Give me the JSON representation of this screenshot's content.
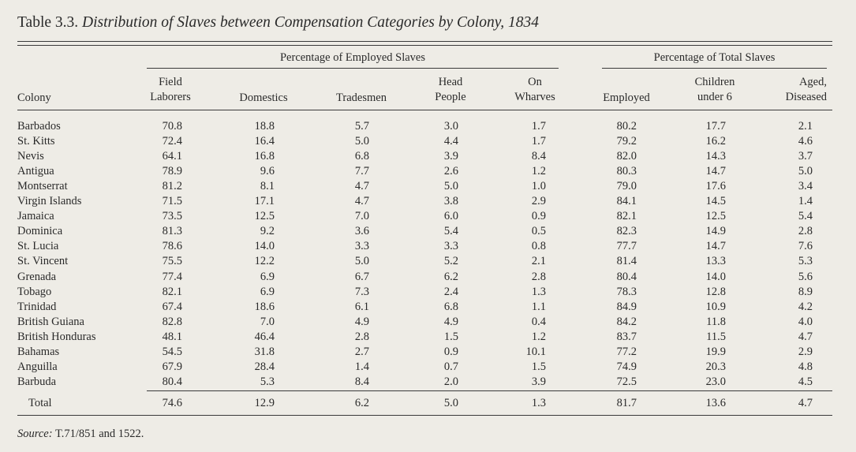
{
  "title": {
    "prefix": "Table 3.3.",
    "text": "Distribution of Slaves between Compensation Categories by Colony, 1834"
  },
  "groups": {
    "employed": "Percentage of Employed Slaves",
    "total": "Percentage of Total Slaves"
  },
  "columns": {
    "colony": "Colony",
    "field_1": "Field",
    "field_2": "Laborers",
    "domestics": "Domestics",
    "tradesmen": "Tradesmen",
    "head_1": "Head",
    "head_2": "People",
    "wharves_1": "On",
    "wharves_2": "Wharves",
    "employed": "Employed",
    "children_1": "Children",
    "children_2": "under 6",
    "aged_1": "Aged,",
    "aged_2": "Diseased"
  },
  "rows": [
    {
      "colony": "Barbados",
      "v": [
        "70.8",
        "18.8",
        "5.7",
        "3.0",
        "1.7",
        "80.2",
        "17.7",
        "2.1"
      ]
    },
    {
      "colony": "St. Kitts",
      "v": [
        "72.4",
        "16.4",
        "5.0",
        "4.4",
        "1.7",
        "79.2",
        "16.2",
        "4.6"
      ]
    },
    {
      "colony": "Nevis",
      "v": [
        "64.1",
        "16.8",
        "6.8",
        "3.9",
        "8.4",
        "82.0",
        "14.3",
        "3.7"
      ]
    },
    {
      "colony": "Antigua",
      "v": [
        "78.9",
        "9.6",
        "7.7",
        "2.6",
        "1.2",
        "80.3",
        "14.7",
        "5.0"
      ]
    },
    {
      "colony": "Montserrat",
      "v": [
        "81.2",
        "8.1",
        "4.7",
        "5.0",
        "1.0",
        "79.0",
        "17.6",
        "3.4"
      ]
    },
    {
      "colony": "Virgin Islands",
      "v": [
        "71.5",
        "17.1",
        "4.7",
        "3.8",
        "2.9",
        "84.1",
        "14.5",
        "1.4"
      ]
    },
    {
      "colony": "Jamaica",
      "v": [
        "73.5",
        "12.5",
        "7.0",
        "6.0",
        "0.9",
        "82.1",
        "12.5",
        "5.4"
      ]
    },
    {
      "colony": "Dominica",
      "v": [
        "81.3",
        "9.2",
        "3.6",
        "5.4",
        "0.5",
        "82.3",
        "14.9",
        "2.8"
      ]
    },
    {
      "colony": "St. Lucia",
      "v": [
        "78.6",
        "14.0",
        "3.3",
        "3.3",
        "0.8",
        "77.7",
        "14.7",
        "7.6"
      ]
    },
    {
      "colony": "St. Vincent",
      "v": [
        "75.5",
        "12.2",
        "5.0",
        "5.2",
        "2.1",
        "81.4",
        "13.3",
        "5.3"
      ]
    },
    {
      "colony": "Grenada",
      "v": [
        "77.4",
        "6.9",
        "6.7",
        "6.2",
        "2.8",
        "80.4",
        "14.0",
        "5.6"
      ]
    },
    {
      "colony": "Tobago",
      "v": [
        "82.1",
        "6.9",
        "7.3",
        "2.4",
        "1.3",
        "78.3",
        "12.8",
        "8.9"
      ]
    },
    {
      "colony": "Trinidad",
      "v": [
        "67.4",
        "18.6",
        "6.1",
        "6.8",
        "1.1",
        "84.9",
        "10.9",
        "4.2"
      ]
    },
    {
      "colony": "British Guiana",
      "v": [
        "82.8",
        "7.0",
        "4.9",
        "4.9",
        "0.4",
        "84.2",
        "11.8",
        "4.0"
      ]
    },
    {
      "colony": "British Honduras",
      "v": [
        "48.1",
        "46.4",
        "2.8",
        "1.5",
        "1.2",
        "83.7",
        "11.5",
        "4.7"
      ]
    },
    {
      "colony": "Bahamas",
      "v": [
        "54.5",
        "31.8",
        "2.7",
        "0.9",
        "10.1",
        "77.2",
        "19.9",
        "2.9"
      ]
    },
    {
      "colony": "Anguilla",
      "v": [
        "67.9",
        "28.4",
        "1.4",
        "0.7",
        "1.5",
        "74.9",
        "20.3",
        "4.8"
      ]
    },
    {
      "colony": "Barbuda",
      "v": [
        "80.4",
        "5.3",
        "8.4",
        "2.0",
        "3.9",
        "72.5",
        "23.0",
        "4.5"
      ]
    }
  ],
  "total": {
    "label": "Total",
    "v": [
      "74.6",
      "12.9",
      "6.2",
      "5.0",
      "1.3",
      "81.7",
      "13.6",
      "4.7"
    ]
  },
  "source": {
    "label": "Source:",
    "text": "T.71/851 and 1522."
  }
}
